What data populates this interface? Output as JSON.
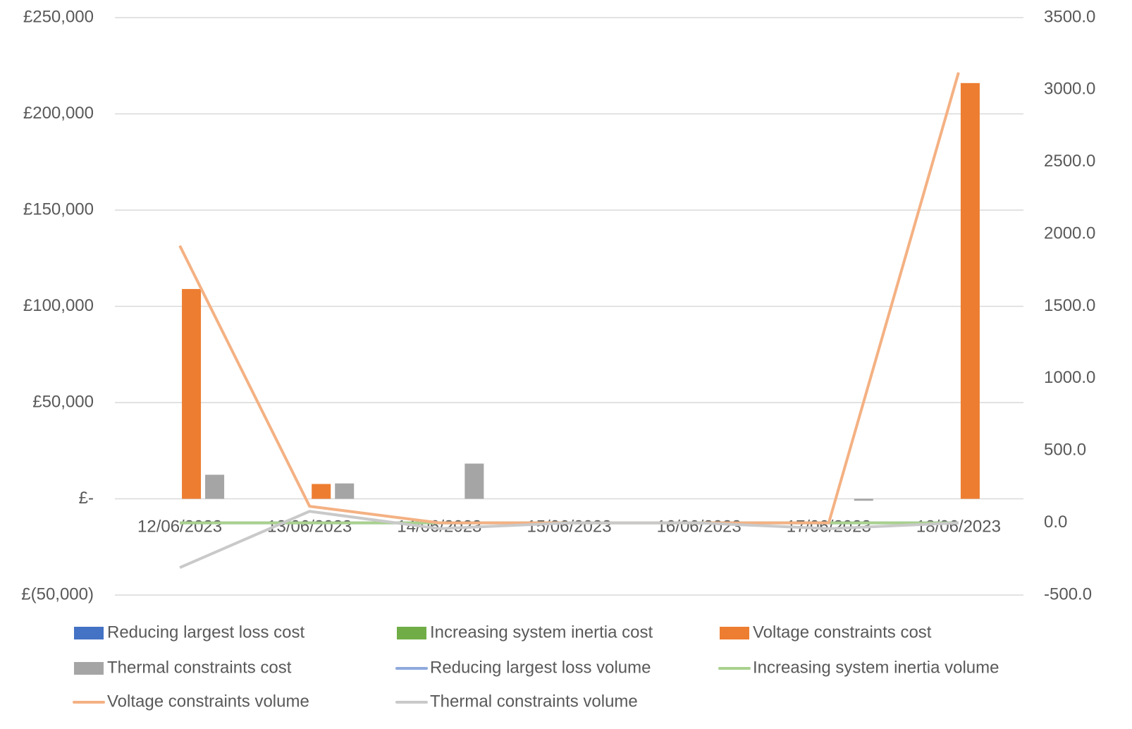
{
  "chart_data": {
    "type": "combo",
    "categories": [
      "12/06/2023",
      "13/06/2023",
      "14/06/2023",
      "15/06/2023",
      "16/06/2023",
      "17/06/2023",
      "18/06/2023"
    ],
    "ylim": [
      -50000,
      250000
    ],
    "yticks": [
      {
        "value": -50000,
        "label": "£(50,000)"
      },
      {
        "value": 0,
        "label": "£-"
      },
      {
        "value": 50000,
        "label": "£50,000"
      },
      {
        "value": 100000,
        "label": "£100,000"
      },
      {
        "value": 150000,
        "label": "£150,000"
      },
      {
        "value": 200000,
        "label": "£200,000"
      },
      {
        "value": 250000,
        "label": "£250,000"
      }
    ],
    "y2lim": [
      -500,
      3500
    ],
    "y2ticks": [
      {
        "value": -500,
        "label": "-500.0"
      },
      {
        "value": 0,
        "label": "0.0"
      },
      {
        "value": 500,
        "label": "500.0"
      },
      {
        "value": 1000,
        "label": "1000.0"
      },
      {
        "value": 1500,
        "label": "1500.0"
      },
      {
        "value": 2000,
        "label": "2000.0"
      },
      {
        "value": 2500,
        "label": "2500.0"
      },
      {
        "value": 3000,
        "label": "3000.0"
      },
      {
        "value": 3500,
        "label": "3500.0"
      }
    ],
    "grid": true,
    "legend": "bottom",
    "series": [
      {
        "name": "Reducing largest loss cost",
        "type": "bar",
        "color": "#4472c4",
        "values": [
          0,
          0,
          0,
          0,
          0,
          0,
          0
        ]
      },
      {
        "name": "Increasing system inertia cost",
        "type": "bar",
        "color": "#70ad47",
        "values": [
          0,
          0,
          0,
          0,
          0,
          0,
          0
        ]
      },
      {
        "name": "Voltage constraints cost",
        "type": "bar",
        "color": "#ed7d31",
        "values": [
          109000,
          7700,
          0,
          0,
          0,
          0,
          216000
        ]
      },
      {
        "name": "Thermal constraints cost",
        "type": "bar",
        "color": "#a5a5a5",
        "values": [
          12500,
          8000,
          18300,
          0,
          0,
          -1000,
          0
        ]
      },
      {
        "name": "Reducing largest loss volume",
        "type": "line",
        "axis": "y2",
        "color": "#8faadc",
        "values": [
          0,
          0,
          0,
          0,
          0,
          0,
          0
        ]
      },
      {
        "name": "Increasing system inertia volume",
        "type": "line",
        "axis": "y2",
        "color": "#a9d18e",
        "values": [
          0,
          0,
          0,
          0,
          0,
          0,
          0
        ]
      },
      {
        "name": "Voltage constraints volume",
        "type": "line",
        "axis": "y2",
        "color": "#f4b183",
        "values": [
          1920,
          115,
          0,
          0,
          0,
          0,
          3120
        ]
      },
      {
        "name": "Thermal constraints volume",
        "type": "line",
        "axis": "y2",
        "color": "#c9c9c9",
        "values": [
          -310,
          80,
          -40,
          0,
          0,
          -40,
          0
        ]
      }
    ]
  }
}
